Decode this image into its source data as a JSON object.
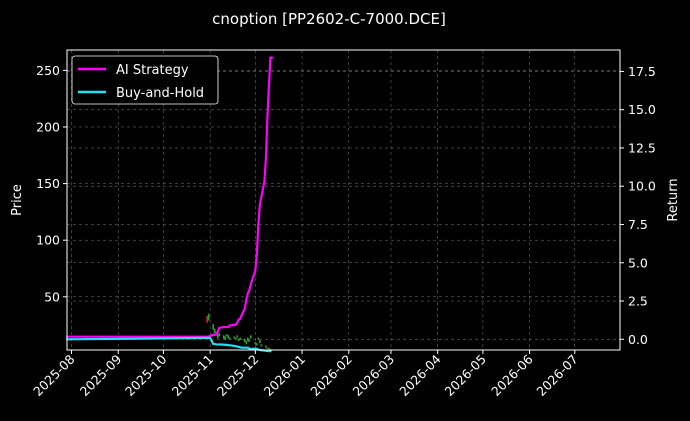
{
  "chart_data": {
    "type": "line",
    "title": "cnoption [PP2602-C-7000.DCE]",
    "xlabel": "",
    "ylabel": "Price",
    "y2label": "Return",
    "background": "#000000",
    "grid": true,
    "legend_position": "top-left",
    "xlim": [
      "2025-07-29",
      "2026-07-31"
    ],
    "ylim": [
      3,
      268
    ],
    "y2lim": [
      -0.7,
      18.9
    ],
    "x_ticks": [
      "2025-08",
      "2025-09",
      "2025-10",
      "2025-11",
      "2025-12",
      "2026-01",
      "2026-02",
      "2026-03",
      "2026-04",
      "2026-05",
      "2026-06",
      "2026-07"
    ],
    "y_ticks": [
      50,
      100,
      150,
      200,
      250
    ],
    "y2_ticks": [
      "0.0",
      "2.5",
      "5.0",
      "7.5",
      "10.0",
      "12.5",
      "15.0",
      "17.5"
    ],
    "series": [
      {
        "name": "AI Strategy",
        "axis": "right",
        "color": "#ff00ff",
        "points": [
          [
            "2025-07-29",
            0.17
          ],
          [
            "2025-10-31",
            0.17
          ],
          [
            "2025-11-03",
            0.3
          ],
          [
            "2025-11-05",
            0.3
          ],
          [
            "2025-11-06",
            0.5
          ],
          [
            "2025-11-07",
            0.75
          ],
          [
            "2025-11-10",
            0.8
          ],
          [
            "2025-11-13",
            0.8
          ],
          [
            "2025-11-14",
            0.9
          ],
          [
            "2025-11-18",
            0.95
          ],
          [
            "2025-11-19",
            1.1
          ],
          [
            "2025-11-20",
            1.3
          ],
          [
            "2025-11-21",
            1.35
          ],
          [
            "2025-11-22",
            1.6
          ],
          [
            "2025-11-24",
            2.0
          ],
          [
            "2025-11-25",
            2.6
          ],
          [
            "2025-11-26",
            3.0
          ],
          [
            "2025-11-27",
            3.2
          ],
          [
            "2025-11-28",
            3.6
          ],
          [
            "2025-11-29",
            3.9
          ],
          [
            "2025-12-01",
            4.5
          ],
          [
            "2025-12-02",
            5.6
          ],
          [
            "2025-12-03",
            7.5
          ],
          [
            "2025-12-04",
            8.8
          ],
          [
            "2025-12-05",
            9.3
          ],
          [
            "2025-12-06",
            9.8
          ],
          [
            "2025-12-07",
            10.3
          ],
          [
            "2025-12-08",
            11.8
          ],
          [
            "2025-12-09",
            14.5
          ],
          [
            "2025-12-10",
            16.5
          ],
          [
            "2025-12-11",
            18.4
          ],
          [
            "2025-12-12",
            18.4
          ]
        ]
      },
      {
        "name": "Buy-and-Hold",
        "axis": "right",
        "color": "#22e0ee",
        "points": [
          [
            "2025-07-29",
            0.0
          ],
          [
            "2025-09-15",
            0.04
          ],
          [
            "2025-10-31",
            0.09
          ],
          [
            "2025-11-01",
            0.09
          ],
          [
            "2025-11-03",
            -0.3
          ],
          [
            "2025-11-05",
            -0.33
          ],
          [
            "2025-11-10",
            -0.35
          ],
          [
            "2025-11-15",
            -0.4
          ],
          [
            "2025-11-18",
            -0.45
          ],
          [
            "2025-11-22",
            -0.55
          ],
          [
            "2025-11-26",
            -0.55
          ],
          [
            "2025-11-28",
            -0.65
          ],
          [
            "2025-12-01",
            -0.6
          ],
          [
            "2025-12-04",
            -0.7
          ],
          [
            "2025-12-08",
            -0.75
          ],
          [
            "2025-12-11",
            -0.78
          ]
        ]
      }
    ],
    "candles": [
      [
        "2025-10-30",
        33,
        27
      ],
      [
        "2025-10-31",
        29,
        35
      ],
      [
        "2025-11-03",
        21,
        26
      ],
      [
        "2025-11-04",
        18,
        22
      ],
      [
        "2025-11-05",
        16,
        19
      ],
      [
        "2025-11-06",
        13,
        17
      ],
      [
        "2025-11-07",
        15,
        18
      ],
      [
        "2025-11-10",
        13,
        16
      ],
      [
        "2025-11-11",
        12,
        15
      ],
      [
        "2025-11-12",
        15,
        17
      ],
      [
        "2025-11-13",
        13,
        16
      ],
      [
        "2025-11-14",
        12,
        14
      ],
      [
        "2025-11-17",
        13,
        15
      ],
      [
        "2025-11-18",
        12,
        14
      ],
      [
        "2025-11-19",
        14,
        16
      ],
      [
        "2025-11-20",
        11,
        13
      ],
      [
        "2025-11-21",
        12,
        14
      ],
      [
        "2025-11-24",
        10,
        13
      ],
      [
        "2025-11-25",
        8,
        11
      ],
      [
        "2025-11-26",
        11,
        14
      ],
      [
        "2025-11-27",
        10,
        12
      ],
      [
        "2025-11-28",
        13,
        16
      ],
      [
        "2025-12-01",
        8,
        10
      ],
      [
        "2025-12-02",
        7,
        9
      ],
      [
        "2025-12-03",
        12,
        14
      ],
      [
        "2025-12-04",
        9,
        12
      ],
      [
        "2025-12-05",
        6,
        8
      ],
      [
        "2025-12-08",
        5,
        7
      ],
      [
        "2025-12-09",
        4,
        5
      ],
      [
        "2025-12-10",
        4,
        5
      ],
      [
        "2025-12-11",
        3,
        4
      ]
    ],
    "candle_colors": {
      "up": "#2ca02c",
      "down": "#d62728"
    }
  }
}
